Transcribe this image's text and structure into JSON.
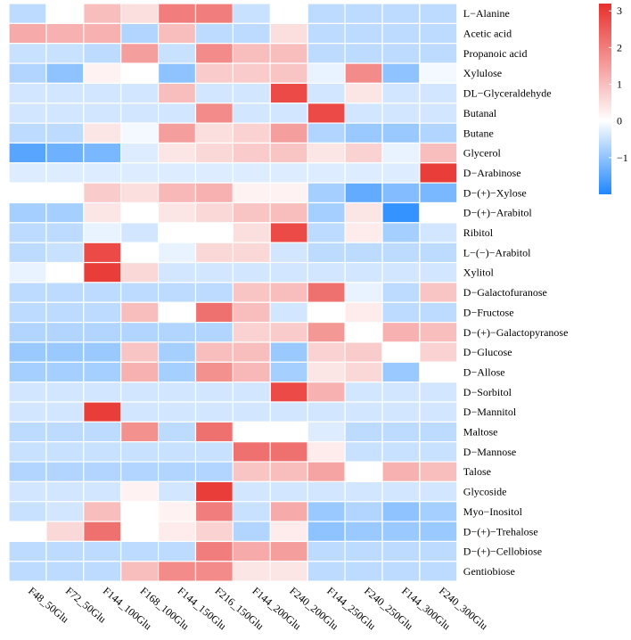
{
  "chart_data": {
    "type": "heatmap",
    "title": "",
    "xlabel": "",
    "ylabel": "",
    "columns": [
      "F48_50Glu",
      "F72_50Glu",
      "F144_100Glu",
      "F168_100Glu",
      "F144_150Glu",
      "F216_150Glu",
      "F144_200Glu",
      "F240_200Glu",
      "F144_250Glu",
      "F240_250Glu",
      "F144_300Glu",
      "F240_300Glu"
    ],
    "rows": [
      {
        "label": "L−Alanine",
        "values": [
          -0.6,
          0,
          1.0,
          0.5,
          2.0,
          2.0,
          -0.5,
          0,
          -0.6,
          -0.6,
          -0.6,
          -0.6
        ]
      },
      {
        "label": "Acetic acid",
        "values": [
          1.3,
          1.2,
          1.2,
          -0.7,
          1.0,
          -0.6,
          -0.6,
          0.5,
          -0.6,
          -0.6,
          -0.6,
          -0.6
        ]
      },
      {
        "label": "Propanoic acid",
        "values": [
          -0.5,
          -0.5,
          -0.6,
          1.5,
          -0.5,
          1.8,
          1.0,
          1.0,
          -0.6,
          -0.6,
          -0.6,
          -0.6
        ]
      },
      {
        "label": "Xylulose",
        "values": [
          -0.7,
          -1.0,
          0.2,
          0,
          -1.0,
          0.8,
          0.8,
          0.9,
          -0.2,
          1.8,
          -1.0,
          -0.1
        ]
      },
      {
        "label": "DL−Glyceraldehyde",
        "values": [
          -0.4,
          -0.4,
          -0.4,
          -0.4,
          1.0,
          -0.4,
          -0.4,
          2.8,
          -0.4,
          0.4,
          -0.4,
          -0.4
        ]
      },
      {
        "label": "Butanal",
        "values": [
          -0.4,
          -0.4,
          -0.4,
          -0.4,
          -0.4,
          1.8,
          -0.4,
          -0.4,
          2.8,
          -0.4,
          -0.4,
          -0.4
        ]
      },
      {
        "label": "Butane",
        "values": [
          -0.6,
          -0.6,
          0.4,
          -0.1,
          1.5,
          0.5,
          0.7,
          1.5,
          -0.7,
          -0.9,
          -0.9,
          -0.7
        ]
      },
      {
        "label": "Glycerol",
        "values": [
          -1.5,
          -1.3,
          -1.2,
          -0.3,
          0.4,
          0.6,
          0.8,
          0.9,
          0.4,
          0.7,
          -0.2,
          1.0
        ]
      },
      {
        "label": "D−Arabinose",
        "values": [
          -0.3,
          -0.3,
          -0.3,
          -0.3,
          -0.3,
          -0.3,
          -0.3,
          -0.3,
          -0.3,
          -0.3,
          -0.3,
          3.0
        ]
      },
      {
        "label": "D−(+)−Xylose",
        "values": [
          0,
          0,
          0.8,
          0.5,
          1.1,
          1.2,
          0.2,
          0.2,
          -0.8,
          -1.4,
          -1.1,
          -1.2
        ]
      },
      {
        "label": "D−(+)−Arabitol",
        "values": [
          -0.8,
          -0.8,
          0.4,
          0,
          0.4,
          0.6,
          0.9,
          1.0,
          -0.8,
          0.4,
          -1.8,
          0
        ]
      },
      {
        "label": "Ribitol",
        "values": [
          -0.6,
          -0.6,
          -0.2,
          -0.4,
          0,
          0,
          0.5,
          2.8,
          -0.6,
          0.3,
          -0.8,
          -0.4
        ]
      },
      {
        "label": "L−(−)−Arabitol",
        "values": [
          -0.6,
          -0.5,
          2.8,
          0,
          -0.2,
          0.6,
          0.6,
          -0.4,
          -0.6,
          -0.6,
          -0.6,
          -0.6
        ]
      },
      {
        "label": "Xylitol",
        "values": [
          -0.2,
          0,
          3.0,
          0.6,
          -0.4,
          -0.4,
          -0.4,
          -0.4,
          -0.4,
          -0.4,
          -0.4,
          -0.4
        ]
      },
      {
        "label": "D−Galactofuranose",
        "values": [
          -0.6,
          -0.6,
          -0.6,
          -0.6,
          -0.6,
          -0.6,
          0.9,
          1.0,
          2.2,
          -0.2,
          -0.6,
          0.9
        ]
      },
      {
        "label": "D−Fructose",
        "values": [
          -0.6,
          -0.6,
          -0.6,
          1.0,
          0,
          2.2,
          1.0,
          -0.4,
          0,
          0.3,
          -0.6,
          -0.6
        ]
      },
      {
        "label": "D−(+)−Galactopyranose",
        "values": [
          -0.7,
          -0.7,
          -0.7,
          -0.7,
          -0.7,
          -0.7,
          0.7,
          0.8,
          1.6,
          0,
          1.2,
          1.0
        ]
      },
      {
        "label": "D−Glucose",
        "values": [
          -0.9,
          -0.9,
          -0.9,
          0.9,
          -0.8,
          1.0,
          1.0,
          -0.9,
          0.7,
          0.8,
          0,
          0.7
        ]
      },
      {
        "label": "D−Allose",
        "values": [
          -0.8,
          -0.8,
          -0.8,
          1.2,
          -0.8,
          1.7,
          1.1,
          -0.8,
          0.4,
          0.6,
          -0.9,
          0
        ]
      },
      {
        "label": "D−Sorbitol",
        "values": [
          -0.4,
          -0.4,
          -0.4,
          -0.4,
          -0.4,
          -0.4,
          -0.4,
          2.8,
          1.2,
          -0.4,
          -0.4,
          -0.4
        ]
      },
      {
        "label": "D−Mannitol",
        "values": [
          -0.4,
          -0.4,
          3.0,
          -0.4,
          -0.4,
          -0.4,
          -0.4,
          -0.4,
          -0.4,
          -0.4,
          -0.4,
          -0.4
        ]
      },
      {
        "label": "Maltose",
        "values": [
          -0.6,
          -0.6,
          -0.6,
          1.7,
          -0.6,
          2.2,
          0,
          0,
          -0.3,
          -0.6,
          -0.6,
          -0.6
        ]
      },
      {
        "label": "D−Mannose",
        "values": [
          -0.5,
          -0.5,
          -0.5,
          -0.5,
          -0.5,
          -0.5,
          2.2,
          2.2,
          0.3,
          -0.5,
          -0.5,
          -0.5
        ]
      },
      {
        "label": "Talose",
        "values": [
          -0.7,
          -0.7,
          -0.7,
          -0.7,
          -0.7,
          -0.7,
          0.9,
          1.0,
          1.4,
          0,
          1.2,
          1.0
        ]
      },
      {
        "label": "Glycoside",
        "values": [
          -0.4,
          -0.4,
          -0.4,
          0.2,
          -0.4,
          3.0,
          -0.4,
          -0.4,
          -0.4,
          -0.4,
          -0.4,
          -0.4
        ]
      },
      {
        "label": "Myo−Inositol",
        "values": [
          -0.5,
          -0.4,
          1.0,
          0,
          0.2,
          2.0,
          -0.5,
          1.3,
          -0.9,
          -0.7,
          -1.0,
          -0.8
        ]
      },
      {
        "label": "D−(+)−Trehalose",
        "values": [
          0,
          0.6,
          2.2,
          0,
          0.3,
          0.7,
          -0.7,
          0.3,
          -1.0,
          -0.9,
          -0.9,
          -0.9
        ]
      },
      {
        "label": "D−(+)−Cellobiose",
        "values": [
          -0.6,
          -0.6,
          -0.6,
          -0.6,
          -0.6,
          2.0,
          1.3,
          1.5,
          -0.6,
          -0.6,
          -0.6,
          -0.6
        ]
      },
      {
        "label": "Gentiobiose",
        "values": [
          -0.6,
          -0.6,
          -0.6,
          1.0,
          1.8,
          1.8,
          0.4,
          0.4,
          -0.6,
          -0.6,
          -0.6,
          -0.6
        ]
      }
    ],
    "color_scale": {
      "min": -2,
      "max": 3.2,
      "low_color": "#1f87ff",
      "mid_color": "#ffffff",
      "high_color": "#e8302d"
    },
    "legend": {
      "ticks": [
        3,
        2,
        1,
        0,
        -1
      ],
      "tick_labels": [
        "3",
        "2",
        "1",
        "0",
        "−1"
      ],
      "position": "top-right"
    }
  }
}
